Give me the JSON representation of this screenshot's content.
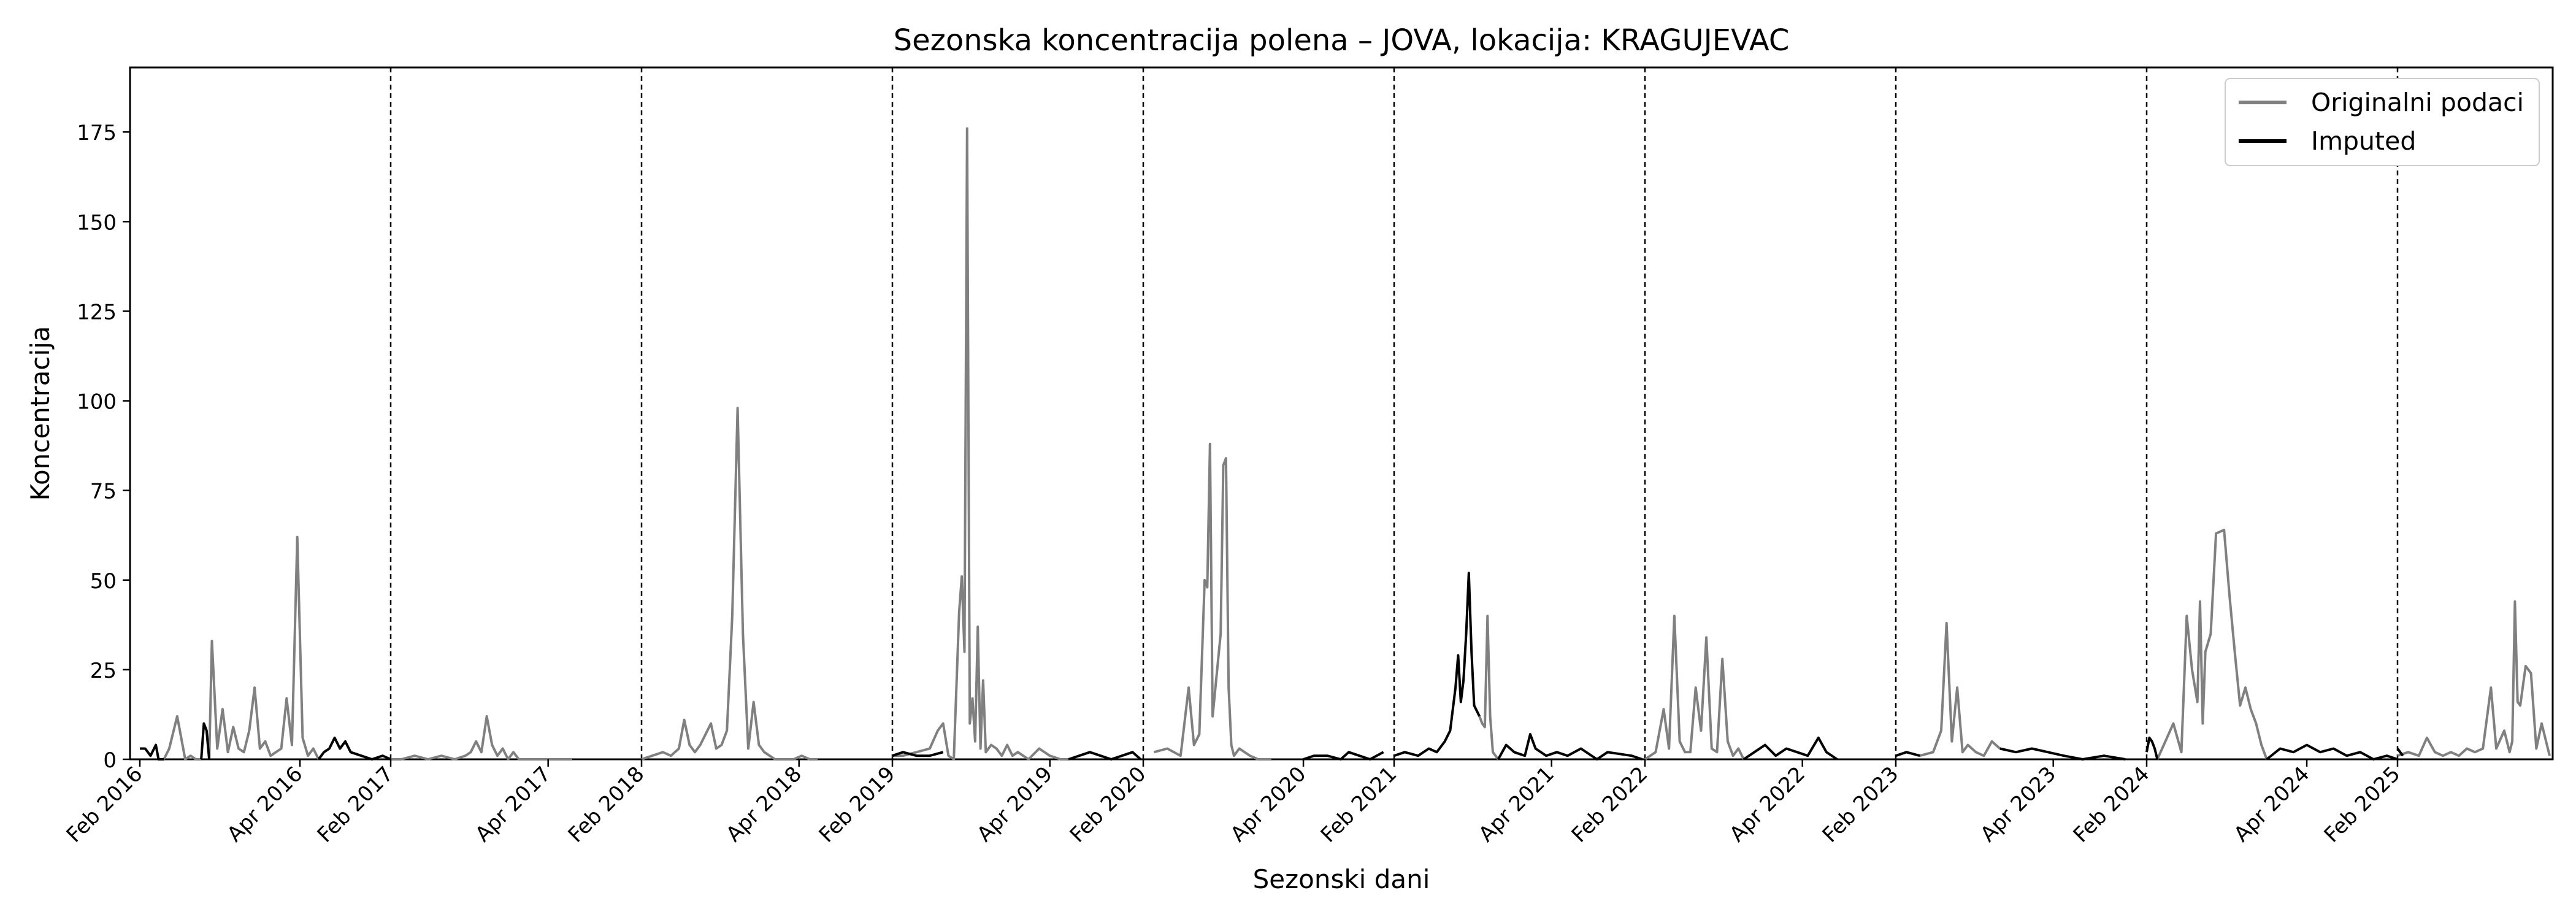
{
  "chart_data": {
    "type": "line",
    "title": "Sezonska koncentracija polena – JOVA, lokacija: KRAGUJEVAC",
    "xlabel": "Sezonski dani",
    "ylabel": "Koncentracija",
    "ylim": [
      0,
      193
    ],
    "yticks": [
      0,
      25,
      50,
      75,
      100,
      125,
      150,
      175
    ],
    "grid": false,
    "legend_position": "top-right",
    "x_tick_labels": [
      "Feb 2016",
      "Apr 2016",
      "Feb 2017",
      "Apr 2017",
      "Feb 2018",
      "Apr 2018",
      "Feb 2019",
      "Apr 2019",
      "Feb 2020",
      "Apr 2020",
      "Feb 2021",
      "Apr 2021",
      "Feb 2022",
      "Apr 2022",
      "Feb 2023",
      "Apr 2023",
      "Feb 2024",
      "Apr 2024",
      "Feb 2025"
    ],
    "season_separators_after": [
      "2016",
      "2017",
      "2018",
      "2019",
      "2020",
      "2021",
      "2022",
      "2023",
      "2024"
    ],
    "series": [
      {
        "name": "Originalni podaci",
        "color": "#808080",
        "segments": [
          {
            "x": [
              "2016-02-10",
              "2016-02-12",
              "2016-02-15",
              "2016-02-18",
              "2016-02-20",
              "2016-02-22",
              "2016-02-24"
            ],
            "y": [
              0,
              3,
              12,
              0,
              1,
              0,
              0
            ]
          },
          {
            "x": [
              "2016-02-27",
              "2016-02-28",
              "2016-03-01",
              "2016-03-03",
              "2016-03-05",
              "2016-03-07",
              "2016-03-09",
              "2016-03-11",
              "2016-03-13",
              "2016-03-15",
              "2016-03-17",
              "2016-03-19",
              "2016-03-21",
              "2016-03-23",
              "2016-03-25",
              "2016-03-27",
              "2016-03-29",
              "2016-03-31",
              "2016-04-02",
              "2016-04-04",
              "2016-04-06",
              "2016-04-08"
            ],
            "y": [
              0,
              33,
              3,
              14,
              2,
              9,
              3,
              2,
              8,
              20,
              3,
              5,
              1,
              2,
              3,
              17,
              4,
              62,
              6,
              1,
              3,
              0
            ]
          },
          {
            "x": [
              "2017-02-01",
              "2017-02-05",
              "2017-02-10",
              "2017-02-15",
              "2017-02-20",
              "2017-02-25",
              "2017-03-01",
              "2017-03-03",
              "2017-03-05",
              "2017-03-07",
              "2017-03-09",
              "2017-03-11",
              "2017-03-13",
              "2017-03-15",
              "2017-03-17",
              "2017-03-19",
              "2017-03-21",
              "2017-03-25",
              "2017-03-30",
              "2017-04-05",
              "2017-04-10"
            ],
            "y": [
              0,
              0,
              1,
              0,
              1,
              0,
              1,
              2,
              5,
              2,
              12,
              4,
              1,
              3,
              0,
              2,
              0,
              0,
              0,
              0,
              0
            ]
          },
          {
            "x": [
              "2018-02-01",
              "2018-02-05",
              "2018-02-09",
              "2018-02-12",
              "2018-02-15",
              "2018-02-17",
              "2018-02-19",
              "2018-02-21",
              "2018-02-23",
              "2018-02-25",
              "2018-02-27",
              "2018-03-01",
              "2018-03-03",
              "2018-03-05",
              "2018-03-07",
              "2018-03-09",
              "2018-03-11",
              "2018-03-13",
              "2018-03-15",
              "2018-03-17",
              "2018-03-19",
              "2018-03-21",
              "2018-03-23",
              "2018-03-25",
              "2018-03-27",
              "2018-03-30",
              "2018-04-02",
              "2018-04-05",
              "2018-04-08"
            ],
            "y": [
              0,
              1,
              2,
              1,
              3,
              11,
              4,
              2,
              4,
              7,
              10,
              3,
              4,
              8,
              40,
              98,
              35,
              3,
              16,
              4,
              2,
              1,
              0,
              0,
              0,
              0,
              1,
              0,
              0
            ]
          },
          {
            "x": [
              "2019-02-01",
              "2019-02-05",
              "2019-02-10",
              "2019-02-15",
              "2019-02-18",
              "2019-02-20",
              "2019-02-22",
              "2019-02-24",
              "2019-02-26",
              "2019-02-27",
              "2019-02-28",
              "2019-03-01",
              "2019-03-02",
              "2019-03-03",
              "2019-03-04",
              "2019-03-05",
              "2019-03-06",
              "2019-03-07",
              "2019-03-08",
              "2019-03-10",
              "2019-03-12",
              "2019-03-14",
              "2019-03-16",
              "2019-03-18",
              "2019-03-20",
              "2019-03-24",
              "2019-03-28",
              "2019-04-01",
              "2019-04-05",
              "2019-04-08"
            ],
            "y": [
              1,
              1,
              2,
              3,
              8,
              10,
              1,
              0,
              41,
              51,
              30,
              176,
              10,
              17,
              5,
              37,
              3,
              22,
              2,
              4,
              3,
              1,
              4,
              1,
              2,
              0,
              3,
              1,
              0,
              0
            ]
          },
          {
            "x": [
              "2020-02-05",
              "2020-02-10",
              "2020-02-15",
              "2020-02-18",
              "2020-02-20",
              "2020-02-22",
              "2020-02-24",
              "2020-02-25",
              "2020-02-26",
              "2020-02-27",
              "2020-03-01",
              "2020-03-02",
              "2020-03-03",
              "2020-03-04",
              "2020-03-05",
              "2020-03-06",
              "2020-03-08",
              "2020-03-10",
              "2020-03-12",
              "2020-03-15",
              "2020-03-20"
            ],
            "y": [
              2,
              3,
              1,
              20,
              4,
              7,
              50,
              48,
              88,
              12,
              35,
              82,
              84,
              20,
              4,
              1,
              3,
              2,
              1,
              0,
              0
            ]
          },
          {
            "x": [
              "2021-03-05",
              "2021-03-06",
              "2021-03-07",
              "2021-03-08",
              "2021-03-09",
              "2021-03-10",
              "2021-03-12"
            ],
            "y": [
              12,
              10,
              9,
              40,
              12,
              2,
              0
            ]
          },
          {
            "x": [
              "2022-02-01",
              "2022-02-05",
              "2022-02-08",
              "2022-02-10",
              "2022-02-12",
              "2022-02-14",
              "2022-02-16",
              "2022-02-18",
              "2022-02-20",
              "2022-02-22",
              "2022-02-24",
              "2022-02-26",
              "2022-02-28",
              "2022-03-02",
              "2022-03-04",
              "2022-03-06",
              "2022-03-08",
              "2022-03-10"
            ],
            "y": [
              0,
              2,
              14,
              3,
              40,
              5,
              2,
              2,
              20,
              8,
              34,
              3,
              2,
              28,
              5,
              1,
              3,
              0
            ]
          },
          {
            "x": [
              "2023-02-10",
              "2023-02-15",
              "2023-02-18",
              "2023-02-20",
              "2023-02-22",
              "2023-02-24",
              "2023-02-26",
              "2023-02-28",
              "2023-03-03",
              "2023-03-06",
              "2023-03-09",
              "2023-03-12"
            ],
            "y": [
              1,
              2,
              8,
              38,
              5,
              20,
              2,
              4,
              2,
              1,
              5,
              3
            ]
          },
          {
            "x": [
              "2024-02-05",
              "2024-02-08",
              "2024-02-11",
              "2024-02-14",
              "2024-02-16",
              "2024-02-18",
              "2024-02-20",
              "2024-02-21",
              "2024-02-22",
              "2024-02-23",
              "2024-02-25",
              "2024-02-27",
              "2024-03-01",
              "2024-03-03",
              "2024-03-05",
              "2024-03-07",
              "2024-03-09",
              "2024-03-11",
              "2024-03-13",
              "2024-03-15",
              "2024-03-17"
            ],
            "y": [
              0,
              5,
              10,
              2,
              40,
              25,
              16,
              44,
              10,
              30,
              35,
              63,
              64,
              46,
              30,
              15,
              20,
              14,
              10,
              4,
              0
            ]
          },
          {
            "x": [
              "2025-02-01",
              "2025-02-05",
              "2025-02-09",
              "2025-02-12",
              "2025-02-15",
              "2025-02-18",
              "2025-02-21",
              "2025-02-24",
              "2025-02-27",
              "2025-03-02",
              "2025-03-05",
              "2025-03-08",
              "2025-03-10",
              "2025-03-13",
              "2025-03-15",
              "2025-03-16",
              "2025-03-17",
              "2025-03-18",
              "2025-03-19",
              "2025-03-21",
              "2025-03-23",
              "2025-03-25",
              "2025-03-27",
              "2025-03-30"
            ],
            "y": [
              1,
              2,
              1,
              6,
              2,
              1,
              2,
              1,
              3,
              2,
              3,
              20,
              3,
              8,
              2,
              5,
              44,
              16,
              15,
              26,
              24,
              3,
              10,
              1
            ]
          }
        ]
      },
      {
        "name": "Imputed",
        "color": "#000000",
        "segments": [
          {
            "x": [
              "2016-02-01",
              "2016-02-03",
              "2016-02-05",
              "2016-02-07",
              "2016-02-08",
              "2016-02-10"
            ],
            "y": [
              3,
              3,
              1,
              4,
              0,
              0
            ]
          },
          {
            "x": [
              "2016-02-24",
              "2016-02-25",
              "2016-02-26",
              "2016-02-27"
            ],
            "y": [
              0,
              10,
              8,
              0
            ]
          },
          {
            "x": [
              "2016-04-08",
              "2016-04-10",
              "2016-04-12",
              "2016-04-14",
              "2016-04-16",
              "2016-04-18",
              "2016-04-20",
              "2016-04-24",
              "2016-04-28",
              "2016-05-02",
              "2016-05-05"
            ],
            "y": [
              0,
              2,
              3,
              6,
              3,
              5,
              2,
              1,
              0,
              1,
              0
            ]
          },
          {
            "x": [
              "2019-02-01",
              "2019-02-05",
              "2019-02-10",
              "2019-02-15",
              "2019-02-20"
            ],
            "y": [
              1,
              2,
              1,
              1,
              2
            ]
          },
          {
            "x": [
              "2019-04-08",
              "2019-04-12",
              "2019-04-16",
              "2019-04-20",
              "2019-04-24",
              "2019-04-28",
              "2019-05-02",
              "2019-05-05"
            ],
            "y": [
              0,
              1,
              2,
              1,
              0,
              1,
              2,
              0
            ]
          },
          {
            "x": [
              "2020-04-01",
              "2020-04-05",
              "2020-04-10",
              "2020-04-15",
              "2020-04-18",
              "2020-04-22",
              "2020-04-26",
              "2020-05-01"
            ],
            "y": [
              0,
              1,
              1,
              0,
              2,
              1,
              0,
              2
            ]
          },
          {
            "x": [
              "2021-02-01",
              "2021-02-05",
              "2021-02-10",
              "2021-02-14",
              "2021-02-17",
              "2021-02-20",
              "2021-02-22",
              "2021-02-24",
              "2021-02-25",
              "2021-02-26",
              "2021-02-27",
              "2021-02-28",
              "2021-03-01",
              "2021-03-02",
              "2021-03-03",
              "2021-03-05"
            ],
            "y": [
              1,
              2,
              1,
              3,
              2,
              5,
              8,
              20,
              29,
              16,
              22,
              35,
              52,
              30,
              15,
              12
            ]
          },
          {
            "x": [
              "2021-03-12",
              "2021-03-15",
              "2021-03-18",
              "2021-03-22",
              "2021-03-24",
              "2021-03-26",
              "2021-03-30",
              "2021-04-03",
              "2021-04-07",
              "2021-04-12",
              "2021-04-18",
              "2021-04-22",
              "2021-05-01",
              "2021-05-05"
            ],
            "y": [
              0,
              4,
              2,
              1,
              7,
              3,
              1,
              2,
              1,
              3,
              0,
              2,
              1,
              0
            ]
          },
          {
            "x": [
              "2022-03-10",
              "2022-03-14",
              "2022-03-18",
              "2022-03-22",
              "2022-03-26",
              "2022-03-30",
              "2022-04-03",
              "2022-04-07",
              "2022-04-10",
              "2022-04-14"
            ],
            "y": [
              0,
              2,
              4,
              1,
              3,
              2,
              1,
              6,
              2,
              0
            ]
          },
          {
            "x": [
              "2023-02-01",
              "2023-02-05",
              "2023-02-10"
            ],
            "y": [
              1,
              2,
              1
            ]
          },
          {
            "x": [
              "2023-03-12",
              "2023-03-18",
              "2023-03-24",
              "2023-03-30",
              "2023-04-05",
              "2023-04-12",
              "2023-04-20",
              "2023-04-28"
            ],
            "y": [
              3,
              2,
              3,
              2,
              1,
              0,
              1,
              0
            ]
          },
          {
            "x": [
              "2024-02-01",
              "2024-02-02",
              "2024-02-03",
              "2024-02-04",
              "2024-02-05"
            ],
            "y": [
              2,
              6,
              5,
              3,
              0
            ]
          },
          {
            "x": [
              "2024-03-17",
              "2024-03-22",
              "2024-03-27",
              "2024-04-01",
              "2024-04-06",
              "2024-04-11",
              "2024-04-16",
              "2024-04-21",
              "2024-04-26",
              "2024-05-01",
              "2024-05-05"
            ],
            "y": [
              0,
              3,
              2,
              4,
              2,
              3,
              1,
              2,
              0,
              1,
              0
            ]
          },
          {
            "x": [
              "2025-02-01",
              "2025-02-03"
            ],
            "y": [
              3,
              1
            ]
          }
        ]
      }
    ]
  }
}
